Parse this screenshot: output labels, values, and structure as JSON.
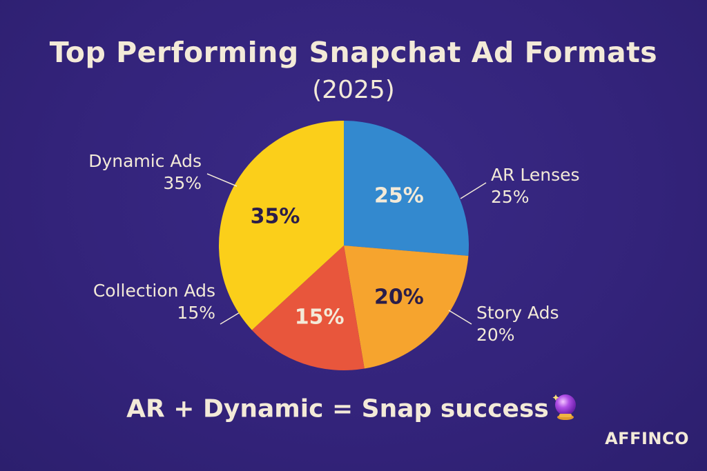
{
  "header": {
    "title": "Top Performing Snapchat Ad Formats",
    "subtitle": "(2025)"
  },
  "footer": {
    "caption": "AR + Dynamic = Snap success",
    "caption_icon": "crystal-ball-icon",
    "brand": "AFFINCO"
  },
  "colors": {
    "background": "#33237a",
    "text": "#f3ead8"
  },
  "chart_data": {
    "type": "pie",
    "title": "Top Performing Snapchat Ad Formats",
    "subtitle": "(2025)",
    "slices": [
      {
        "name": "AR Lenses",
        "value": 25,
        "label": "25%",
        "color": "#3389cf",
        "value_color": "#f3ead8"
      },
      {
        "name": "Story Ads",
        "value": 20,
        "label": "20%",
        "color": "#f6a42e",
        "value_color": "#2a1d4a"
      },
      {
        "name": "Collection Ads",
        "value": 15,
        "label": "15%",
        "color": "#e8563c",
        "value_color": "#f3ead8"
      },
      {
        "name": "Dynamic Ads",
        "value": 35,
        "label": "35%",
        "color": "#fbcf1a",
        "value_color": "#2a1d4a"
      }
    ]
  }
}
